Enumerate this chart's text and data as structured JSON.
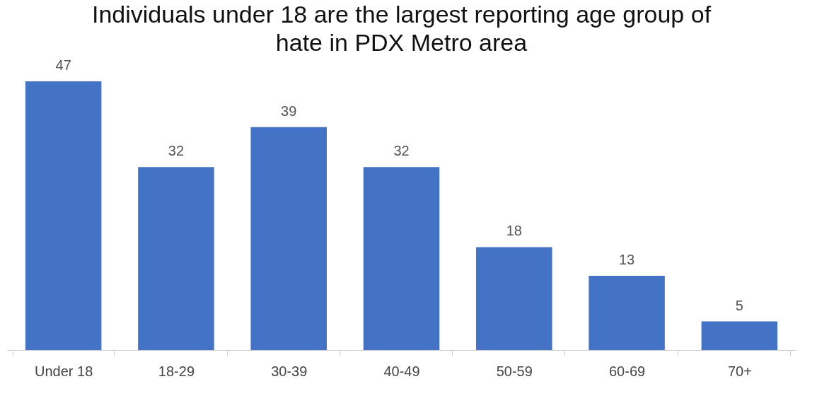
{
  "chart_data": {
    "type": "bar",
    "title": "Individuals under 18 are the largest reporting age group of hate in PDX Metro area",
    "categories": [
      "Under 18",
      "18-29",
      "30-39",
      "40-49",
      "50-59",
      "60-69",
      "70+"
    ],
    "values": [
      47,
      32,
      39,
      32,
      18,
      13,
      5
    ],
    "color": "#4472c4",
    "data_labels": true,
    "grid": false
  }
}
